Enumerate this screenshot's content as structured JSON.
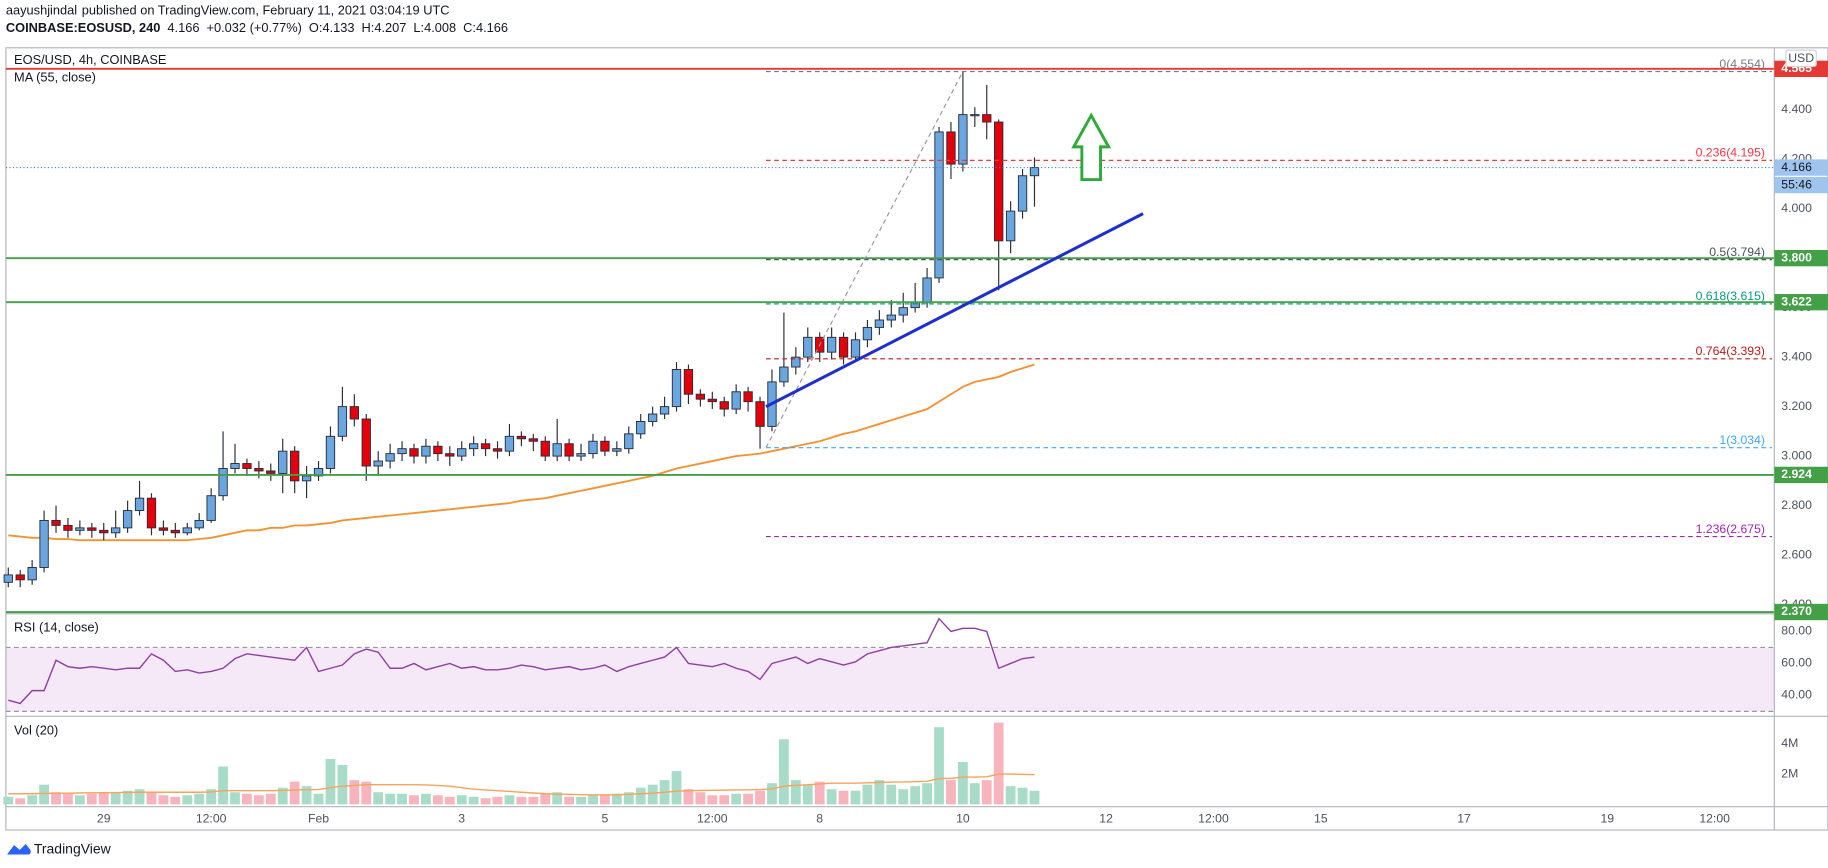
{
  "header": {
    "author": "aayushjindal",
    "published": "published on TradingView.com, February 11, 2021 03:04:19 UTC",
    "symbol": "COINBASE:EOSUSD, 240",
    "last": "4.166",
    "change": "+0.032 (+0.77%)",
    "open": "O:4.133",
    "high": "H:4.207",
    "low": "L:4.008",
    "close": "C:4.166"
  },
  "footer": {
    "brand": "TradingView"
  },
  "chart_data": [
    {
      "type": "candlestick",
      "title": "EOS/USD, 4h, COINBASE",
      "currency": "USD",
      "xlim": [
        -0.2,
        148
      ],
      "xticks": [
        {
          "value": 8,
          "label": "29"
        },
        {
          "value": 17,
          "label": "12:00"
        },
        {
          "value": 26,
          "label": "Feb"
        },
        {
          "value": 38,
          "label": "3"
        },
        {
          "value": 50,
          "label": "5"
        },
        {
          "value": 59,
          "label": "12:00"
        },
        {
          "value": 68,
          "label": "8"
        },
        {
          "value": 80,
          "label": "10"
        },
        {
          "value": 92,
          "label": "12"
        },
        {
          "value": 101,
          "label": "12:00"
        },
        {
          "value": 110,
          "label": "15"
        },
        {
          "value": 122,
          "label": "17"
        },
        {
          "value": 134,
          "label": "19"
        },
        {
          "value": 143,
          "label": "12:00"
        }
      ],
      "ylim": [
        2.37,
        4.65
      ],
      "yticks": [
        {
          "value": 2.4,
          "label": "2.400"
        },
        {
          "value": 2.6,
          "label": "2.600"
        },
        {
          "value": 2.8,
          "label": "2.800"
        },
        {
          "value": 3.0,
          "label": "3.000"
        },
        {
          "value": 3.2,
          "label": "3.200"
        },
        {
          "value": 3.4,
          "label": "3.400"
        },
        {
          "value": 3.6,
          "label": "3.600"
        },
        {
          "value": 3.8,
          "label": "3.800"
        },
        {
          "value": 4.0,
          "label": "4.000"
        },
        {
          "value": 4.2,
          "label": "4.200"
        },
        {
          "value": 4.4,
          "label": "4.400"
        }
      ],
      "grid": true,
      "up_color": "#6aa6e0",
      "down_color": "#e3000b",
      "open": [
        2.49,
        2.52,
        2.5,
        2.55,
        2.74,
        2.72,
        2.7,
        2.71,
        2.7,
        2.69,
        2.71,
        2.78,
        2.83,
        2.71,
        2.7,
        2.69,
        2.71,
        2.74,
        2.84,
        2.95,
        2.97,
        2.95,
        2.94,
        2.93,
        3.02,
        2.9,
        2.92,
        2.95,
        3.08,
        3.2,
        3.15,
        2.96,
        2.98,
        3.01,
        3.03,
        3.0,
        3.04,
        3.01,
        3.0,
        3.03,
        3.05,
        3.03,
        3.02,
        3.08,
        3.07,
        3.06,
        3.0,
        3.05,
        3.0,
        3.01,
        3.06,
        3.02,
        3.03,
        3.09,
        3.14,
        3.17,
        3.2,
        3.35,
        3.25,
        3.23,
        3.22,
        3.19,
        3.26,
        3.22,
        3.12,
        3.3,
        3.36,
        3.4,
        3.48,
        3.42,
        3.48,
        3.4,
        3.47,
        3.52,
        3.55,
        3.57,
        3.6,
        3.62,
        3.72,
        4.31,
        4.18,
        4.38,
        4.38,
        4.35,
        3.87,
        3.99,
        4.133
      ],
      "high": [
        2.55,
        2.54,
        2.58,
        2.78,
        2.8,
        2.75,
        2.74,
        2.73,
        2.73,
        2.78,
        2.82,
        2.9,
        2.85,
        2.74,
        2.73,
        2.73,
        2.77,
        2.87,
        3.1,
        3.05,
        2.99,
        2.98,
        2.97,
        3.07,
        3.04,
        2.96,
        2.98,
        3.12,
        3.28,
        3.25,
        3.17,
        3.02,
        3.05,
        3.06,
        3.05,
        3.07,
        3.06,
        3.04,
        3.06,
        3.08,
        3.07,
        3.06,
        3.13,
        3.1,
        3.09,
        3.08,
        3.15,
        3.07,
        3.05,
        3.09,
        3.08,
        3.06,
        3.12,
        3.17,
        3.2,
        3.24,
        3.38,
        3.37,
        3.27,
        3.26,
        3.24,
        3.29,
        3.28,
        3.24,
        3.35,
        3.58,
        3.44,
        3.52,
        3.5,
        3.52,
        3.5,
        3.5,
        3.55,
        3.59,
        3.63,
        3.66,
        3.7,
        3.76,
        4.33,
        4.35,
        4.554,
        4.41,
        4.5,
        4.36,
        4.03,
        4.16,
        4.207
      ],
      "low": [
        2.47,
        2.47,
        2.48,
        2.53,
        2.69,
        2.67,
        2.68,
        2.67,
        2.66,
        2.67,
        2.69,
        2.76,
        2.68,
        2.68,
        2.67,
        2.68,
        2.7,
        2.73,
        2.82,
        2.93,
        2.92,
        2.91,
        2.9,
        2.85,
        2.85,
        2.83,
        2.9,
        2.93,
        3.06,
        3.12,
        2.9,
        2.92,
        2.95,
        2.98,
        2.97,
        2.97,
        2.98,
        2.96,
        2.98,
        3.0,
        3.0,
        2.99,
        3.0,
        3.04,
        3.02,
        2.98,
        2.98,
        2.98,
        2.98,
        2.99,
        3.0,
        3.0,
        3.01,
        3.07,
        3.12,
        3.15,
        3.18,
        3.21,
        3.2,
        3.19,
        3.16,
        3.17,
        3.18,
        3.03,
        3.1,
        3.28,
        3.33,
        3.38,
        3.38,
        3.39,
        3.37,
        3.38,
        3.44,
        3.49,
        3.52,
        3.54,
        3.58,
        3.6,
        3.7,
        4.12,
        4.15,
        4.33,
        4.28,
        3.67,
        3.82,
        3.96,
        4.008
      ],
      "close": [
        2.52,
        2.5,
        2.55,
        2.74,
        2.72,
        2.7,
        2.71,
        2.7,
        2.69,
        2.71,
        2.78,
        2.83,
        2.71,
        2.7,
        2.69,
        2.71,
        2.74,
        2.84,
        2.95,
        2.97,
        2.95,
        2.94,
        2.93,
        3.02,
        2.9,
        2.92,
        2.95,
        3.08,
        3.2,
        3.15,
        2.96,
        2.98,
        3.01,
        3.03,
        3.0,
        3.04,
        3.01,
        3.0,
        3.03,
        3.05,
        3.03,
        3.02,
        3.08,
        3.07,
        3.06,
        3.0,
        3.05,
        3.0,
        3.01,
        3.06,
        3.02,
        3.03,
        3.09,
        3.14,
        3.17,
        3.2,
        3.35,
        3.25,
        3.23,
        3.22,
        3.19,
        3.26,
        3.22,
        3.12,
        3.3,
        3.36,
        3.4,
        3.48,
        3.42,
        3.48,
        3.4,
        3.47,
        3.52,
        3.55,
        3.57,
        3.6,
        3.62,
        3.72,
        4.31,
        4.18,
        4.38,
        4.38,
        4.35,
        3.87,
        3.99,
        4.133,
        4.166
      ],
      "ma": {
        "name": "MA (55, close)",
        "color": "#f5922f",
        "values": [
          2.68,
          2.675,
          2.67,
          2.67,
          2.665,
          2.665,
          2.66,
          2.66,
          2.66,
          2.66,
          2.66,
          2.66,
          2.66,
          2.66,
          2.66,
          2.66,
          2.665,
          2.67,
          2.68,
          2.69,
          2.7,
          2.7,
          2.71,
          2.71,
          2.72,
          2.72,
          2.725,
          2.73,
          2.74,
          2.745,
          2.75,
          2.755,
          2.76,
          2.765,
          2.77,
          2.775,
          2.78,
          2.785,
          2.79,
          2.795,
          2.8,
          2.805,
          2.81,
          2.82,
          2.825,
          2.83,
          2.84,
          2.85,
          2.86,
          2.87,
          2.88,
          2.89,
          2.9,
          2.91,
          2.92,
          2.935,
          2.95,
          2.96,
          2.97,
          2.98,
          2.99,
          3.0,
          3.005,
          3.01,
          3.02,
          3.03,
          3.04,
          3.05,
          3.06,
          3.075,
          3.09,
          3.1,
          3.115,
          3.13,
          3.145,
          3.16,
          3.175,
          3.19,
          3.22,
          3.25,
          3.28,
          3.3,
          3.31,
          3.32,
          3.34,
          3.355,
          3.37
        ]
      },
      "hlines": [
        {
          "value": 4.565,
          "label": "4.565",
          "color": "#e53935"
        },
        {
          "value": 3.8,
          "label": "3.800",
          "color": "#43a047"
        },
        {
          "value": 3.622,
          "label": "3.622",
          "color": "#43a047"
        },
        {
          "value": 2.924,
          "label": "2.924",
          "color": "#43a047"
        },
        {
          "value": 2.37,
          "label": "2.370",
          "color": "#43a047"
        }
      ],
      "fib": {
        "x": [
          63.5,
          80
        ],
        "levels": [
          {
            "value": 4.554,
            "label": "0(4.554)",
            "color": "#787b86"
          },
          {
            "value": 4.195,
            "label": "0.236(4.195)",
            "color": "#f23645"
          },
          {
            "value": 3.794,
            "label": "0.5(3.794)",
            "color": "#4c525e"
          },
          {
            "value": 3.615,
            "label": "0.618(3.615)",
            "color": "#089981"
          },
          {
            "value": 3.393,
            "label": "0.764(3.393)",
            "color": "#b71c1c"
          },
          {
            "value": 3.034,
            "label": "1(3.034)",
            "color": "#42a5f5"
          },
          {
            "value": 2.675,
            "label": "1.236(2.675)",
            "color": "#9c27b0"
          }
        ]
      },
      "trendline": {
        "x": [
          63.5,
          95.1
        ],
        "y": [
          3.2,
          3.98
        ],
        "color": "#1e2fd0"
      },
      "last_price": {
        "value": 4.166,
        "label": "4.166",
        "color": "#9fc4ee"
      },
      "countdown": "55:46"
    },
    {
      "type": "line",
      "title": "RSI (14, close)",
      "color": "#8e3fa0",
      "ylim": [
        28,
        90
      ],
      "yticks": [
        {
          "value": 40,
          "label": "40.00"
        },
        {
          "value": 60,
          "label": "60.00"
        },
        {
          "value": 80,
          "label": "80.00"
        }
      ],
      "band": [
        30,
        70
      ],
      "band_color": "#9c27b0",
      "values": [
        37,
        35,
        43,
        43,
        62,
        58,
        57,
        58,
        57,
        56,
        57,
        57,
        66,
        62,
        55,
        56,
        54,
        55,
        57,
        63,
        66,
        65,
        64,
        63,
        62,
        70,
        55,
        57,
        59,
        66,
        69,
        67,
        57,
        57,
        60,
        56,
        58,
        60,
        57,
        58,
        56,
        56,
        57,
        59,
        58,
        56,
        57,
        58,
        56,
        57,
        59,
        55,
        58,
        60,
        62,
        64,
        70,
        60,
        59,
        58,
        60,
        57,
        55,
        50,
        60,
        62,
        64,
        60,
        63,
        61,
        59,
        61,
        66,
        68,
        70,
        71,
        72,
        73,
        88,
        80,
        82,
        82,
        80,
        57,
        60,
        63,
        64
      ]
    },
    {
      "type": "bar",
      "title": "Vol (20)",
      "ylim": [
        0,
        5.7
      ],
      "yticks": [
        {
          "value": 2,
          "label": "2M"
        },
        {
          "value": 4,
          "label": "4M"
        }
      ],
      "up_color": "#a8dcc8",
      "down_color": "#f8b4bc",
      "values": [
        0.5,
        0.4,
        0.6,
        1.3,
        0.8,
        0.7,
        0.6,
        0.7,
        0.8,
        0.8,
        0.9,
        1.0,
        0.8,
        0.6,
        0.5,
        0.6,
        0.7,
        1.0,
        2.5,
        0.8,
        0.7,
        0.6,
        0.7,
        1.1,
        1.5,
        1.2,
        0.7,
        3.0,
        2.6,
        1.6,
        1.5,
        0.8,
        0.7,
        0.7,
        0.6,
        0.7,
        0.6,
        0.5,
        0.6,
        0.5,
        0.4,
        0.5,
        0.6,
        0.5,
        0.5,
        0.7,
        0.8,
        0.5,
        0.5,
        0.6,
        0.6,
        0.7,
        0.8,
        1.1,
        1.3,
        1.6,
        2.2,
        1.0,
        0.8,
        0.6,
        0.6,
        0.7,
        0.7,
        0.9,
        1.4,
        4.3,
        1.6,
        1.3,
        1.5,
        1.0,
        0.9,
        0.9,
        1.3,
        1.6,
        1.3,
        1.0,
        1.2,
        1.4,
        5.1,
        1.6,
        2.8,
        1.4,
        1.6,
        5.4,
        1.2,
        1.1,
        0.9
      ],
      "ma": {
        "color": "#f7a35c",
        "values": [
          0.7,
          0.7,
          0.7,
          0.72,
          0.74,
          0.74,
          0.75,
          0.76,
          0.77,
          0.78,
          0.79,
          0.8,
          0.8,
          0.8,
          0.8,
          0.8,
          0.8,
          0.82,
          0.9,
          0.9,
          0.9,
          0.9,
          0.9,
          0.92,
          0.95,
          0.97,
          0.98,
          1.1,
          1.2,
          1.25,
          1.3,
          1.3,
          1.3,
          1.3,
          1.3,
          1.28,
          1.25,
          1.2,
          1.1,
          1.0,
          0.95,
          0.9,
          0.85,
          0.8,
          0.75,
          0.7,
          0.68,
          0.66,
          0.64,
          0.63,
          0.63,
          0.64,
          0.66,
          0.7,
          0.74,
          0.8,
          0.87,
          0.9,
          0.92,
          0.93,
          0.94,
          0.95,
          0.96,
          0.98,
          1.02,
          1.2,
          1.25,
          1.3,
          1.35,
          1.4,
          1.4,
          1.4,
          1.42,
          1.45,
          1.47,
          1.48,
          1.5,
          1.52,
          1.7,
          1.72,
          1.8,
          1.8,
          1.82,
          2.0,
          2.0,
          1.98,
          1.96
        ]
      }
    }
  ]
}
